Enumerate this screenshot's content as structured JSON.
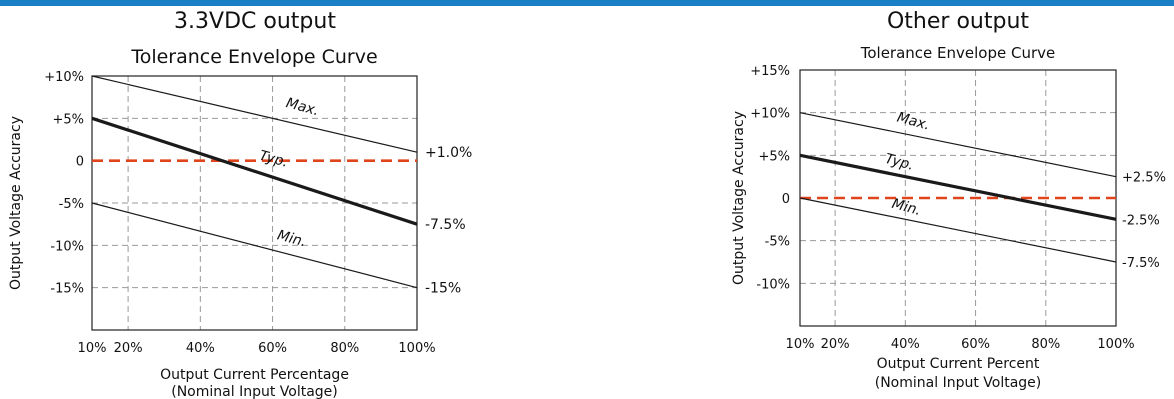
{
  "colors": {
    "top_bar": "#1a7fc4",
    "line": "#1a1a1a",
    "grid": "#9a9a9a",
    "zero_line": "#e0441c"
  },
  "chart_data": [
    {
      "type": "line",
      "heading": "3.3VDC output",
      "title": "Tolerance Envelope  Curve",
      "xlabel": "Output Current Percentage",
      "xlabel2": "(Nominal Input Voltage)",
      "ylabel": "Output  Voltage Accuracy",
      "xlim": [
        10,
        100
      ],
      "ylim": [
        -20,
        10
      ],
      "x_ticks": [
        10,
        20,
        40,
        60,
        80,
        100
      ],
      "x_tick_labels": [
        "10%",
        "20%",
        "40%",
        "60%",
        "80%",
        "100%"
      ],
      "y_ticks": [
        10,
        5,
        0,
        -5,
        -10,
        -15
      ],
      "y_tick_labels": [
        "+10%",
        "+5%",
        "0",
        "-5%",
        "-10%",
        "-15%"
      ],
      "grid": true,
      "series": [
        {
          "name": "Max.",
          "x": [
            10,
            100
          ],
          "y": [
            10,
            1
          ],
          "end_label": "+1.0%",
          "style": "thin"
        },
        {
          "name": "Typ.",
          "x": [
            10,
            100
          ],
          "y": [
            5,
            -7.5
          ],
          "end_label": "-7.5%",
          "style": "bold"
        },
        {
          "name": "Min.",
          "x": [
            10,
            100
          ],
          "y": [
            -5,
            -15
          ],
          "end_label": "-15%",
          "style": "thin"
        }
      ]
    },
    {
      "type": "line",
      "heading": "Other output",
      "title": "Tolerance Envelope  Curve",
      "xlabel": "Output Current Percent",
      "xlabel2": "(Nominal Input Voltage)",
      "ylabel": "Output  Voltage Accuracy",
      "xlim": [
        10,
        100
      ],
      "ylim": [
        -15,
        15
      ],
      "x_ticks": [
        10,
        20,
        40,
        60,
        80,
        100
      ],
      "x_tick_labels": [
        "10%",
        "20%",
        "40%",
        "60%",
        "80%",
        "100%"
      ],
      "y_ticks": [
        15,
        10,
        5,
        0,
        -5,
        -10
      ],
      "y_tick_labels": [
        "+15%",
        "+10%",
        "+5%",
        "0",
        "-5%",
        "-10%"
      ],
      "grid": true,
      "series": [
        {
          "name": "Max.",
          "x": [
            10,
            100
          ],
          "y": [
            10,
            2.5
          ],
          "end_label": "+2.5%",
          "style": "thin"
        },
        {
          "name": "Typ.",
          "x": [
            10,
            100
          ],
          "y": [
            5,
            -2.5
          ],
          "end_label": "-2.5%",
          "style": "bold"
        },
        {
          "name": "Min.",
          "x": [
            10,
            100
          ],
          "y": [
            0,
            -7.5
          ],
          "end_label": "-7.5%",
          "style": "thin"
        }
      ]
    }
  ]
}
